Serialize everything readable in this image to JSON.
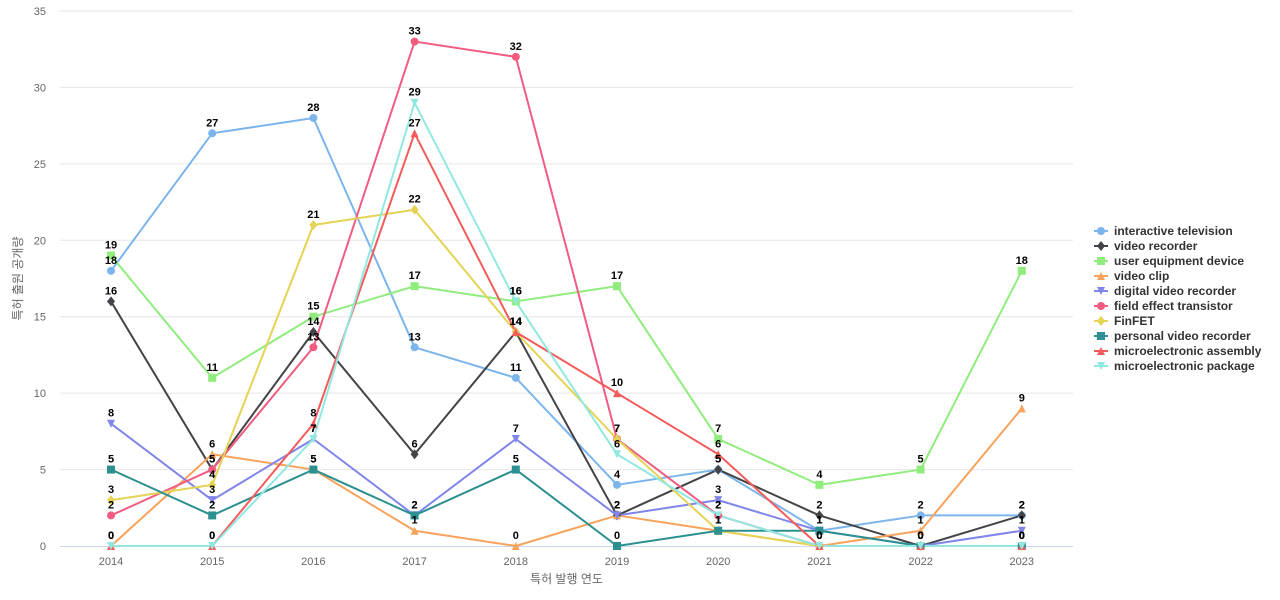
{
  "chart_data": {
    "type": "line",
    "title": "",
    "xlabel": "특허 발행 연도",
    "ylabel": "특허 출원 공개량",
    "ylim": [
      0,
      35
    ],
    "yticks": [
      0,
      5,
      10,
      15,
      20,
      25,
      30,
      35
    ],
    "categories": [
      "2014",
      "2015",
      "2016",
      "2017",
      "2018",
      "2019",
      "2020",
      "2021",
      "2022",
      "2023"
    ],
    "legend_position": "right",
    "series": [
      {
        "name": "interactive television",
        "color": "#7cb5ec",
        "marker": "circle",
        "values": [
          18,
          27,
          28,
          13,
          11,
          4,
          5,
          1,
          2,
          2
        ]
      },
      {
        "name": "video recorder",
        "color": "#434348",
        "marker": "diamond",
        "values": [
          16,
          5,
          14,
          6,
          14,
          2,
          5,
          2,
          0,
          2
        ]
      },
      {
        "name": "user equipment device",
        "color": "#90ed7d",
        "marker": "square",
        "values": [
          19,
          11,
          15,
          17,
          16,
          17,
          7,
          4,
          5,
          18
        ]
      },
      {
        "name": "video clip",
        "color": "#f7a35c",
        "marker": "triangle",
        "values": [
          0,
          6,
          5,
          1,
          0,
          2,
          1,
          0,
          1,
          9
        ]
      },
      {
        "name": "digital video recorder",
        "color": "#8085e9",
        "marker": "triangle-down",
        "values": [
          8,
          3,
          7,
          2,
          7,
          2,
          3,
          1,
          0,
          1
        ]
      },
      {
        "name": "field effect transistor",
        "color": "#f15c80",
        "marker": "circle",
        "values": [
          2,
          5,
          13,
          33,
          32,
          7,
          2,
          0,
          0,
          0
        ]
      },
      {
        "name": "FinFET",
        "color": "#e4d354",
        "marker": "diamond",
        "values": [
          3,
          4,
          21,
          22,
          14,
          7,
          1,
          0,
          0,
          0
        ]
      },
      {
        "name": "personal video recorder",
        "color": "#2b908f",
        "marker": "square",
        "values": [
          5,
          2,
          5,
          2,
          5,
          0,
          1,
          1,
          0,
          0
        ]
      },
      {
        "name": "microelectronic assembly",
        "color": "#f45b5b",
        "marker": "triangle",
        "values": [
          0,
          0,
          8,
          27,
          14,
          10,
          6,
          0,
          0,
          0
        ]
      },
      {
        "name": "microelectronic package",
        "color": "#91e8e1",
        "marker": "triangle-down",
        "values": [
          0,
          0,
          7,
          29,
          16,
          6,
          2,
          0,
          0,
          0
        ]
      }
    ]
  }
}
